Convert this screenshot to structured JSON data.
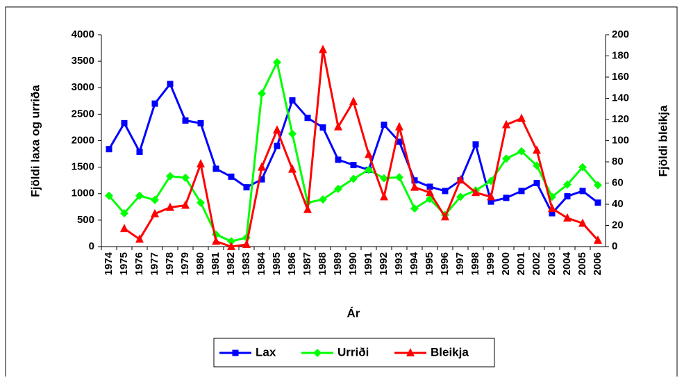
{
  "chart_data": {
    "type": "line",
    "x_label": "Ár",
    "y_label": "Fjöldi laxa og urriða",
    "y2_label": "Fjöldi bleikja",
    "categories": [
      "1974",
      "1975",
      "1976",
      "1977",
      "1978",
      "1979",
      "1980",
      "1981",
      "1982",
      "1983",
      "1984",
      "1985",
      "1986",
      "1987",
      "1988",
      "1989",
      "1990",
      "1991",
      "1992",
      "1993",
      "1994",
      "1995",
      "1996",
      "1997",
      "1998",
      "1999",
      "2000",
      "2001",
      "2002",
      "2003",
      "2004",
      "2005",
      "2006"
    ],
    "series": [
      {
        "name": "Lax",
        "color": "#0000ff",
        "marker": "square",
        "values": [
          1840,
          2330,
          1790,
          2700,
          3070,
          2380,
          2330,
          1470,
          1320,
          1120,
          1270,
          1900,
          2760,
          2430,
          2250,
          1640,
          1540,
          1450,
          2300,
          1980,
          1250,
          1130,
          1050,
          1250,
          1930,
          850,
          920,
          1050,
          1200,
          630,
          950,
          1050,
          830
        ]
      },
      {
        "name": "Urriði",
        "color": "#00ff00",
        "marker": "diamond",
        "values": [
          960,
          630,
          960,
          880,
          1330,
          1300,
          830,
          230,
          100,
          170,
          2890,
          3480,
          2130,
          830,
          890,
          1090,
          1280,
          1450,
          1290,
          1310,
          720,
          900,
          600,
          940,
          1060,
          1240,
          1660,
          1800,
          1530,
          940,
          1170,
          1500,
          1160
        ]
      },
      {
        "name": "Bleikja",
        "color": "#ff0000",
        "marker": "triangle",
        "axis": "y2",
        "values": [
          null,
          17,
          7,
          31,
          37,
          39,
          78,
          5,
          0,
          2,
          75,
          110,
          73,
          35,
          186,
          113,
          137,
          87,
          47,
          113,
          56,
          51,
          28,
          63,
          51,
          47,
          115,
          121,
          91,
          36,
          27,
          22,
          6
        ]
      }
    ],
    "ylim": [
      0,
      4000
    ],
    "yticks": [
      0,
      500,
      1000,
      1500,
      2000,
      2500,
      3000,
      3500,
      4000
    ],
    "y2lim": [
      0,
      200
    ],
    "y2ticks": [
      0,
      20,
      40,
      60,
      80,
      100,
      120,
      140,
      160,
      180,
      200
    ],
    "legend": "bottom"
  }
}
